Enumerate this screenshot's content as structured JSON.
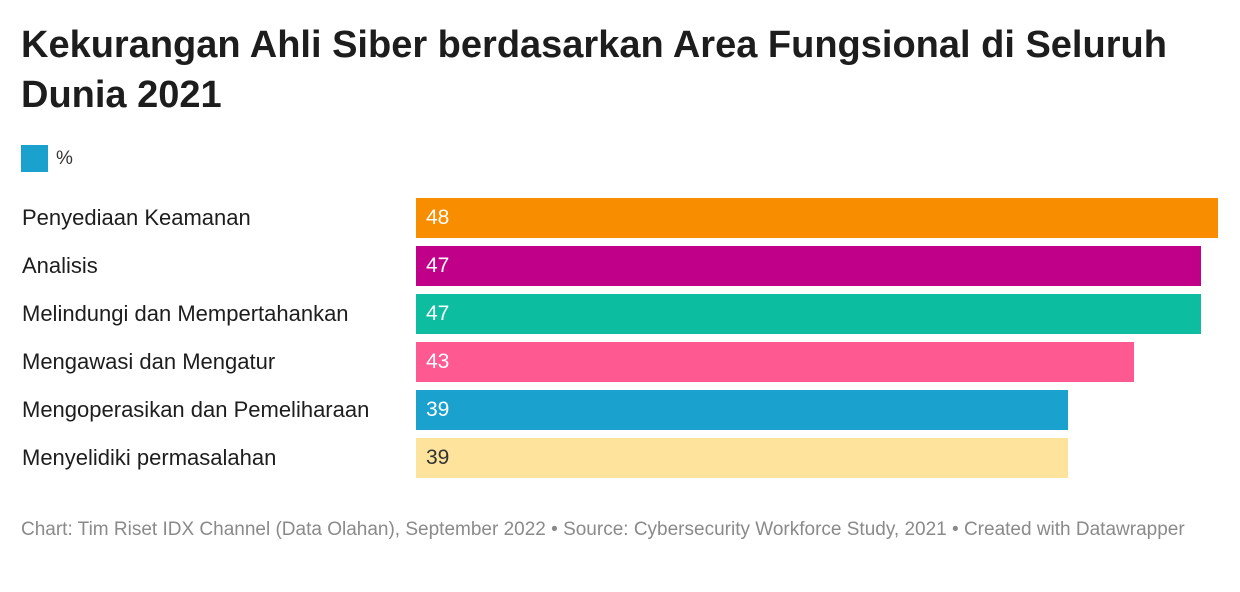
{
  "title": "Kekurangan Ahli Siber berdasarkan Area Fungsional di Seluruh Dunia 2021",
  "legend": {
    "label": "%",
    "color": "#1ba1cd"
  },
  "chart_data": {
    "type": "bar",
    "orientation": "horizontal",
    "title": "Kekurangan Ahli Siber berdasarkan Area Fungsional di Seluruh Dunia 2021",
    "categories": [
      "Penyediaan Keamanan",
      "Analisis",
      "Melindungi dan Mempertahankan",
      "Mengawasi dan Mengatur",
      "Mengoperasikan dan Pemeliharaan",
      "Menyelidiki permasalahan"
    ],
    "series": [
      {
        "name": "%",
        "values": [
          48,
          47,
          47,
          43,
          39,
          39
        ]
      }
    ],
    "bar_colors": [
      "#f98d00",
      "#c1008a",
      "#0dbd9f",
      "#fe5991",
      "#1ba1cd",
      "#fde39b"
    ],
    "value_label_colors": [
      "#ffffff",
      "#ffffff",
      "#ffffff",
      "#ffffff",
      "#ffffff",
      "#333333"
    ],
    "xlim": [
      0,
      48
    ],
    "grid": false,
    "legend_position": "top-left"
  },
  "footer": "Chart: Tim Riset IDX Channel (Data Olahan), September 2022 • Source: Cybersecurity Workforce Study, 2021 • Created with Datawrapper"
}
